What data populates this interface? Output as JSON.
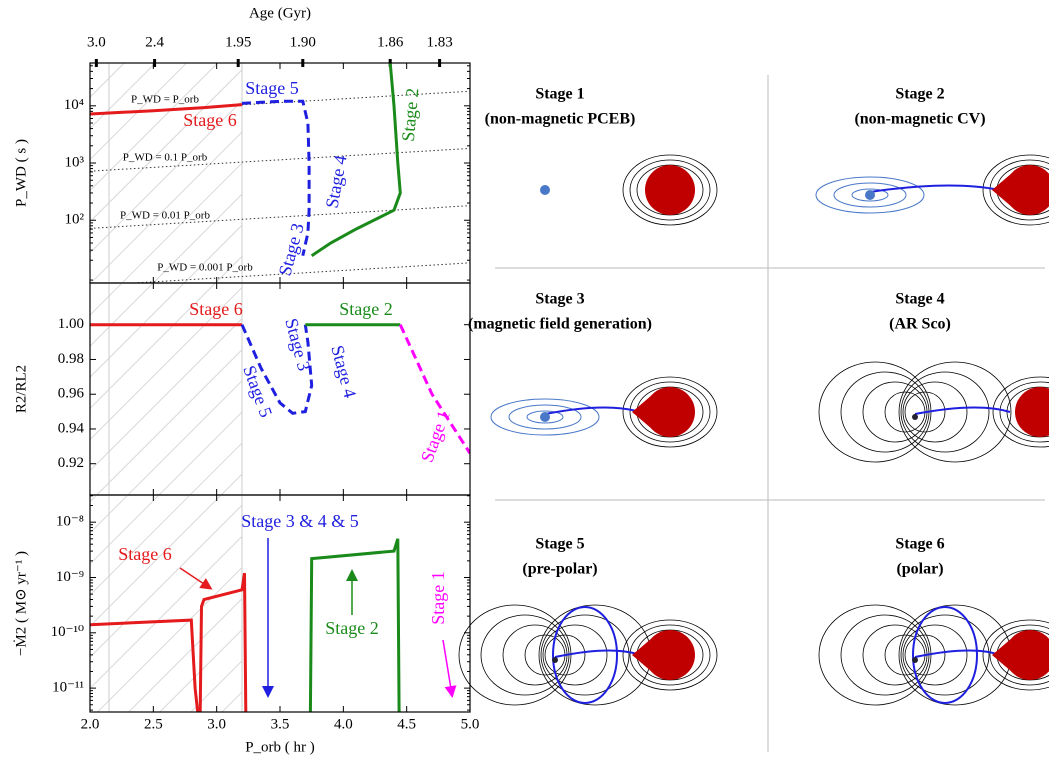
{
  "chart_data": [
    {
      "type": "line",
      "ylabel": "P_WD ( s )",
      "ylog": true,
      "ylim": [
        8,
        56000
      ],
      "yticks": [
        {
          "value": 100,
          "label": "10²"
        },
        {
          "value": 1000,
          "label": "10³"
        },
        {
          "value": 10000,
          "label": "10⁴"
        }
      ],
      "x2label": "Age (Gyr)",
      "x2ticks": [
        {
          "value": 3,
          "label": "3.0"
        },
        {
          "value": 2.4,
          "label": "2.4"
        },
        {
          "value": 1.95,
          "label": "1.95"
        },
        {
          "value": 1.9,
          "label": "1.90"
        },
        {
          "value": 1.86,
          "label": "1.86"
        },
        {
          "value": 1.83,
          "label": "1.83"
        }
      ],
      "x2ticks_porb": [
        2.05,
        2.51,
        3.17,
        3.68,
        4.37,
        4.76
      ],
      "reference_lines": [
        {
          "label": "P_WD = P_orb",
          "factor": 1
        },
        {
          "label": "P_WD = 0.1 P_orb",
          "factor": 0.1
        },
        {
          "label": "P_WD = 0.01 P_orb",
          "factor": 0.01
        },
        {
          "label": "P_WD = 0.001 P_orb",
          "factor": 0.001
        }
      ],
      "series": [
        {
          "color": "#e41a1c",
          "dash": false,
          "x": [
            2.0,
            2.5,
            2.9,
            3.2
          ],
          "values": [
            7200,
            8200,
            9300,
            10500
          ]
        },
        {
          "color": "#1f1fe0",
          "dash": true,
          "x": [
            3.2,
            3.35,
            3.5,
            3.68,
            3.72,
            3.73,
            3.73,
            3.72,
            3.68
          ],
          "values": [
            11000,
            11500,
            12000,
            12000,
            5000,
            1000,
            150,
            60,
            24
          ]
        },
        {
          "color": "#1a8a1a",
          "dash": false,
          "x": [
            4.37,
            4.4,
            4.43,
            4.45,
            4.4,
            4.1,
            3.9,
            3.75
          ],
          "values": [
            56000,
            10000,
            1000,
            300,
            150,
            70,
            40,
            24
          ]
        }
      ],
      "annotations": [
        {
          "text": "Stage 6",
          "color": "#e41a1c"
        },
        {
          "text": "Stage 5",
          "color": "#1f1fe0"
        },
        {
          "text": "Stage 4",
          "color": "#1f1fe0"
        },
        {
          "text": "Stage 3",
          "color": "#1f1fe0"
        },
        {
          "text": "Stage 2",
          "color": "#1a8a1a"
        }
      ]
    },
    {
      "type": "line",
      "ylabel": "R2/RL2",
      "ylog": false,
      "ylim": [
        0.902,
        1.024
      ],
      "yticks": [
        {
          "value": 0.92,
          "label": "0.92"
        },
        {
          "value": 0.94,
          "label": "0.94"
        },
        {
          "value": 0.96,
          "label": "0.96"
        },
        {
          "value": 0.98,
          "label": "0.98"
        },
        {
          "value": 1,
          "label": "1.00"
        }
      ],
      "series": [
        {
          "color": "#e41a1c",
          "dash": false,
          "x": [
            2.0,
            3.2
          ],
          "values": [
            1.0,
            1.0
          ]
        },
        {
          "color": "#1f1fe0",
          "dash": true,
          "x": [
            3.2,
            3.35,
            3.5,
            3.6,
            3.7,
            3.75,
            3.72,
            3.7
          ],
          "values": [
            1.0,
            0.975,
            0.955,
            0.949,
            0.95,
            0.965,
            0.99,
            1.0
          ]
        },
        {
          "color": "#1a8a1a",
          "dash": false,
          "x": [
            3.7,
            4.45
          ],
          "values": [
            1.0,
            1.0
          ]
        },
        {
          "color": "#ff00ff",
          "dash": true,
          "x": [
            4.45,
            4.7,
            5.0
          ],
          "values": [
            1.0,
            0.96,
            0.926
          ]
        }
      ],
      "annotations": [
        {
          "text": "Stage 6",
          "color": "#e41a1c"
        },
        {
          "text": "Stage 2",
          "color": "#1a8a1a"
        },
        {
          "text": "Stage 3",
          "color": "#1f1fe0"
        },
        {
          "text": "Stage 4",
          "color": "#1f1fe0"
        },
        {
          "text": "Stage 5",
          "color": "#1f1fe0"
        },
        {
          "text": "Stage 1",
          "color": "#ff00ff"
        }
      ]
    },
    {
      "type": "line",
      "ylabel": "−Ṁ2 ( M⊙ yr⁻¹ )",
      "xlabel": "P_orb ( hr )",
      "ylog": true,
      "ylim": [
        3.7e-12,
        3.1e-08
      ],
      "xlim": [
        2,
        5
      ],
      "xticks": [
        {
          "value": 2,
          "label": "2.0"
        },
        {
          "value": 2.5,
          "label": "2.5"
        },
        {
          "value": 3,
          "label": "3.0"
        },
        {
          "value": 3.5,
          "label": "3.5"
        },
        {
          "value": 4,
          "label": "4.0"
        },
        {
          "value": 4.5,
          "label": "4.5"
        },
        {
          "value": 5,
          "label": "5.0"
        }
      ],
      "yticks": [
        {
          "value": 1e-11,
          "label": "10⁻¹¹"
        },
        {
          "value": 1e-10,
          "label": "10⁻¹⁰"
        },
        {
          "value": 1e-09,
          "label": "10⁻⁹"
        },
        {
          "value": 1e-08,
          "label": "10⁻⁸"
        }
      ],
      "series": [
        {
          "color": "#e41a1c",
          "dash": false,
          "x": [
            2.0,
            2.8,
            2.83,
            2.85,
            null,
            2.87,
            2.88,
            2.9,
            3.2,
            3.22,
            3.23
          ],
          "values": [
            1.4e-10,
            1.7e-10,
            1e-11,
            3.7e-12,
            null,
            3.7e-12,
            3e-10,
            4e-10,
            6e-10,
            1.2e-09,
            3.7e-12
          ]
        },
        {
          "color": "#1a8a1a",
          "dash": false,
          "x": [
            3.74,
            3.75,
            4.4,
            4.43,
            4.44
          ],
          "values": [
            3.7e-12,
            2.2e-09,
            3e-09,
            5e-09,
            3.7e-12
          ]
        }
      ],
      "annotations": [
        {
          "text": "Stage 3 & 4 & 5",
          "color": "#1f1fe0"
        },
        {
          "text": "Stage 6",
          "color": "#e41a1c"
        },
        {
          "text": "Stage 2",
          "color": "#1a8a1a"
        },
        {
          "text": "Stage 1",
          "color": "#ff00ff"
        }
      ]
    }
  ],
  "diagram": {
    "panels": [
      {
        "title": "Stage 1",
        "subtitle": "(non-magnetic PCEB)"
      },
      {
        "title": "Stage 2",
        "subtitle": "(non-magnetic CV)"
      },
      {
        "title": "Stage 3",
        "subtitle": "(magnetic field generation)"
      },
      {
        "title": "Stage 4",
        "subtitle": "(AR Sco)"
      },
      {
        "title": "Stage 5",
        "subtitle": "(pre-polar)"
      },
      {
        "title": "Stage 6",
        "subtitle": "(polar)"
      }
    ]
  }
}
